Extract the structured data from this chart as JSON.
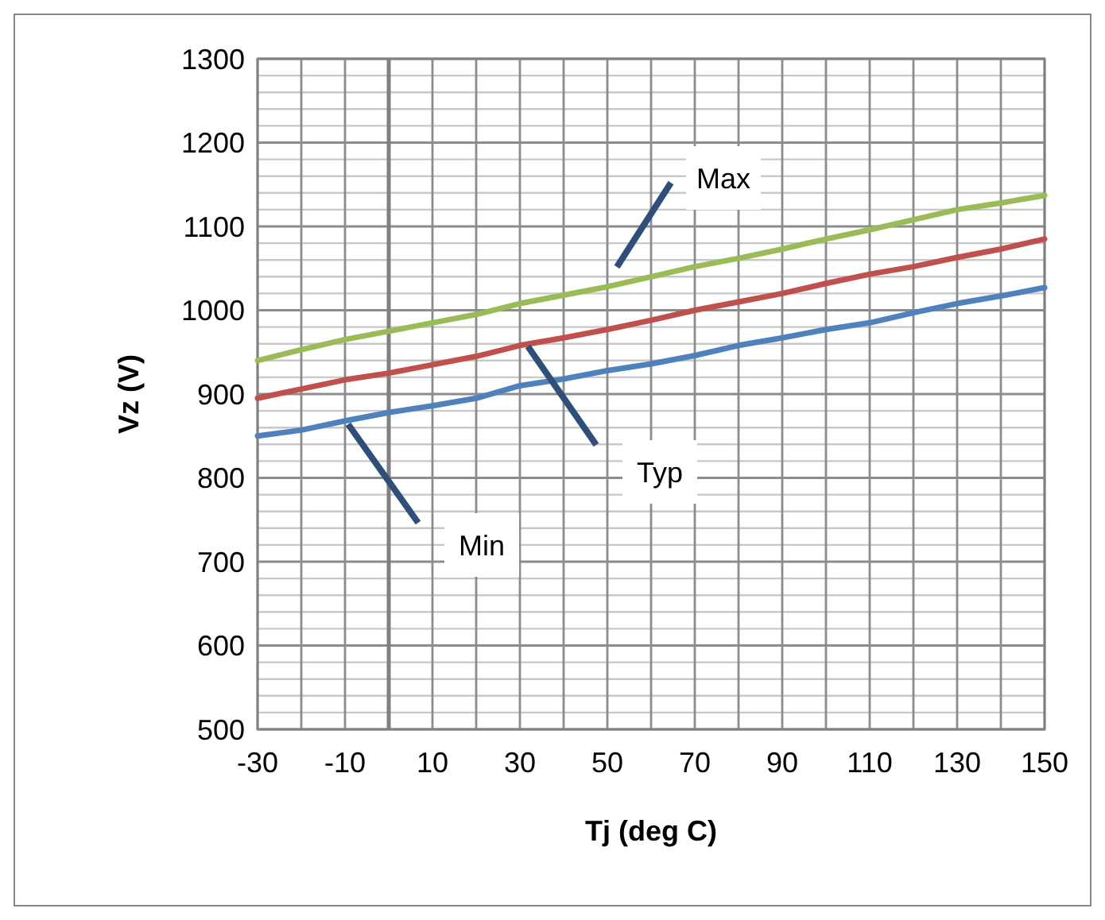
{
  "chart_data": {
    "type": "line",
    "xlabel": "Tj (deg C)",
    "ylabel": "Vz (V)",
    "x": [
      -30,
      -20,
      -10,
      0,
      10,
      20,
      30,
      40,
      50,
      60,
      70,
      80,
      90,
      100,
      110,
      120,
      130,
      140,
      150
    ],
    "series": [
      {
        "color": "#9bbb59",
        "values": [
          940,
          953,
          965,
          975,
          985,
          995,
          1008,
          1018,
          1028,
          1040,
          1052,
          1062,
          1073,
          1085,
          1096,
          1108,
          1120,
          1128,
          1137
        ]
      },
      {
        "color": "#c0504d",
        "values": [
          895,
          906,
          917,
          925,
          935,
          945,
          958,
          967,
          977,
          988,
          1000,
          1010,
          1020,
          1032,
          1043,
          1052,
          1063,
          1073,
          1085
        ]
      },
      {
        "color": "#4f81bd",
        "values": [
          850,
          857,
          868,
          878,
          886,
          895,
          910,
          918,
          928,
          936,
          946,
          958,
          967,
          977,
          985,
          997,
          1008,
          1017,
          1027
        ]
      }
    ],
    "xlim": [
      -30,
      150
    ],
    "xticks": [
      -30,
      {
        "value": -20,
        "label": null
      },
      -10,
      {
        "value": 0,
        "label": null
      },
      10,
      {
        "value": 20,
        "label": null
      },
      30,
      {
        "value": 40,
        "label": null
      },
      50,
      {
        "value": 60,
        "label": null
      },
      70,
      {
        "value": 80,
        "label": null
      },
      90,
      {
        "value": 100,
        "label": null
      },
      110,
      {
        "value": 120,
        "label": null
      },
      130,
      {
        "value": 140,
        "label": null
      },
      150
    ],
    "ylim": [
      500,
      1300
    ],
    "yticks": [
      500,
      {
        "value": 520,
        "label": null
      },
      {
        "value": 540,
        "label": null
      },
      {
        "value": 560,
        "label": null
      },
      {
        "value": 580,
        "label": null
      },
      600,
      {
        "value": 620,
        "label": null
      },
      {
        "value": 640,
        "label": null
      },
      {
        "value": 660,
        "label": null
      },
      {
        "value": 680,
        "label": null
      },
      700,
      {
        "value": 720,
        "label": null
      },
      {
        "value": 740,
        "label": null
      },
      {
        "value": 760,
        "label": null
      },
      {
        "value": 780,
        "label": null
      },
      800,
      {
        "value": 820,
        "label": null
      },
      {
        "value": 840,
        "label": null
      },
      {
        "value": 860,
        "label": null
      },
      {
        "value": 880,
        "label": null
      },
      900,
      {
        "value": 920,
        "label": null
      },
      {
        "value": 940,
        "label": null
      },
      {
        "value": 960,
        "label": null
      },
      {
        "value": 980,
        "label": null
      },
      1000,
      {
        "value": 1020,
        "label": null
      },
      {
        "value": 1040,
        "label": null
      },
      {
        "value": 1060,
        "label": null
      },
      {
        "value": 1080,
        "label": null
      },
      1100,
      {
        "value": 1120,
        "label": null
      },
      {
        "value": 1140,
        "label": null
      },
      {
        "value": 1160,
        "label": null
      },
      {
        "value": 1180,
        "label": null
      },
      1200,
      {
        "value": 1220,
        "label": null
      },
      {
        "value": 1240,
        "label": null
      },
      {
        "value": 1260,
        "label": null
      },
      {
        "value": 1280,
        "label": null
      },
      1300
    ],
    "ref_lines": [
      {
        "axis": "x",
        "value": 0,
        "color": "#808080"
      }
    ],
    "grid": true,
    "marker": "none",
    "line_style": "solid",
    "annotations": [
      "Max",
      "Typ",
      "Min"
    ]
  }
}
